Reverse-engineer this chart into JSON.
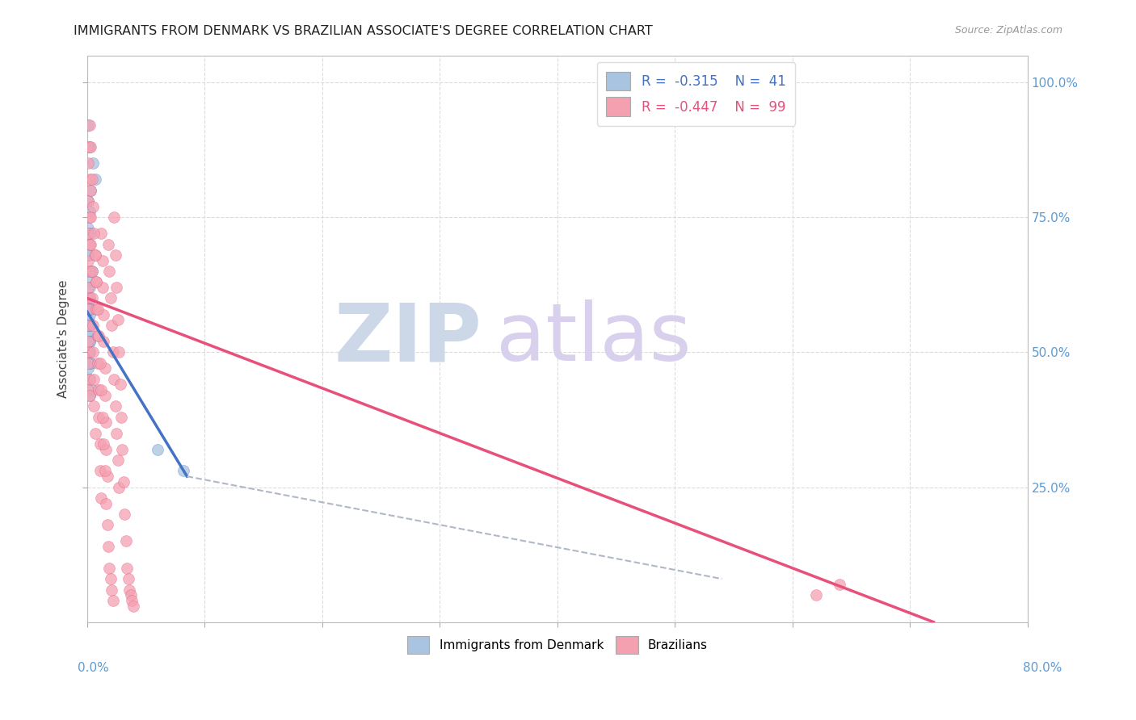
{
  "title": "IMMIGRANTS FROM DENMARK VS BRAZILIAN ASSOCIATE'S DEGREE CORRELATION CHART",
  "source": "Source: ZipAtlas.com",
  "ylabel": "Associate's Degree",
  "denmark_color": "#a8c4e0",
  "brazil_color": "#f4a0b0",
  "denmark_line_color": "#4472c4",
  "brazil_line_color": "#e8507a",
  "dashed_line_color": "#b0b8c8",
  "right_axis_color": "#5b9bd5",
  "watermark_zip_color": "#ccd8e8",
  "watermark_atlas_color": "#d8d0ec",
  "xlim": [
    0.0,
    0.8
  ],
  "ylim": [
    0.0,
    1.05
  ],
  "denmark_scatter_x": [
    0.005,
    0.007,
    0.003,
    0.001,
    0.002,
    0.001,
    0.002,
    0.001,
    0.002,
    0.001,
    0.003,
    0.002,
    0.002,
    0.001,
    0.001,
    0.002,
    0.001,
    0.002,
    0.003,
    0.001,
    0.002,
    0.001,
    0.002,
    0.001,
    0.002,
    0.001,
    0.002,
    0.001,
    0.002,
    0.001,
    0.003,
    0.002,
    0.004,
    0.003,
    0.002,
    0.003,
    0.001,
    0.004,
    0.002,
    0.082,
    0.06
  ],
  "denmark_scatter_y": [
    0.85,
    0.82,
    0.8,
    0.92,
    0.88,
    0.78,
    0.76,
    0.73,
    0.7,
    0.68,
    0.65,
    0.63,
    0.6,
    0.58,
    0.56,
    0.55,
    0.53,
    0.5,
    0.48,
    0.47,
    0.52,
    0.54,
    0.57,
    0.59,
    0.62,
    0.6,
    0.58,
    0.55,
    0.52,
    0.5,
    0.48,
    0.45,
    0.43,
    0.58,
    0.55,
    0.72,
    0.68,
    0.65,
    0.42,
    0.28,
    0.32
  ],
  "brazil_scatter_x": [
    0.001,
    0.002,
    0.001,
    0.002,
    0.001,
    0.002,
    0.001,
    0.002,
    0.001,
    0.002,
    0.001,
    0.002,
    0.001,
    0.002,
    0.001,
    0.002,
    0.001,
    0.002,
    0.001,
    0.002,
    0.003,
    0.003,
    0.003,
    0.004,
    0.004,
    0.005,
    0.005,
    0.006,
    0.006,
    0.007,
    0.007,
    0.008,
    0.008,
    0.009,
    0.009,
    0.01,
    0.01,
    0.011,
    0.011,
    0.012,
    0.012,
    0.013,
    0.013,
    0.014,
    0.014,
    0.015,
    0.015,
    0.016,
    0.016,
    0.017,
    0.018,
    0.019,
    0.02,
    0.021,
    0.022,
    0.023,
    0.024,
    0.025,
    0.026,
    0.027,
    0.003,
    0.004,
    0.005,
    0.006,
    0.007,
    0.008,
    0.009,
    0.01,
    0.011,
    0.012,
    0.013,
    0.014,
    0.015,
    0.016,
    0.017,
    0.018,
    0.019,
    0.02,
    0.021,
    0.022,
    0.023,
    0.024,
    0.025,
    0.026,
    0.027,
    0.028,
    0.029,
    0.03,
    0.031,
    0.032,
    0.033,
    0.034,
    0.035,
    0.036,
    0.037,
    0.038,
    0.039,
    0.64,
    0.62
  ],
  "brazil_scatter_y": [
    0.85,
    0.82,
    0.78,
    0.92,
    0.88,
    0.75,
    0.72,
    0.7,
    0.67,
    0.65,
    0.62,
    0.6,
    0.58,
    0.55,
    0.52,
    0.5,
    0.48,
    0.45,
    0.43,
    0.42,
    0.8,
    0.75,
    0.7,
    0.65,
    0.6,
    0.55,
    0.5,
    0.45,
    0.4,
    0.35,
    0.68,
    0.63,
    0.58,
    0.53,
    0.48,
    0.43,
    0.38,
    0.33,
    0.28,
    0.23,
    0.72,
    0.67,
    0.62,
    0.57,
    0.52,
    0.47,
    0.42,
    0.37,
    0.32,
    0.27,
    0.7,
    0.65,
    0.6,
    0.55,
    0.5,
    0.45,
    0.4,
    0.35,
    0.3,
    0.25,
    0.88,
    0.82,
    0.77,
    0.72,
    0.68,
    0.63,
    0.58,
    0.53,
    0.48,
    0.43,
    0.38,
    0.33,
    0.28,
    0.22,
    0.18,
    0.14,
    0.1,
    0.08,
    0.06,
    0.04,
    0.75,
    0.68,
    0.62,
    0.56,
    0.5,
    0.44,
    0.38,
    0.32,
    0.26,
    0.2,
    0.15,
    0.1,
    0.08,
    0.06,
    0.05,
    0.04,
    0.03,
    0.07,
    0.05
  ],
  "denmark_trendline_x": [
    0.0,
    0.085
  ],
  "denmark_trendline_y": [
    0.575,
    0.27
  ],
  "brazil_trendline_x": [
    0.0,
    0.72
  ],
  "brazil_trendline_y": [
    0.6,
    0.0
  ],
  "dashed_trendline_x": [
    0.085,
    0.54
  ],
  "dashed_trendline_y": [
    0.27,
    0.08
  ]
}
